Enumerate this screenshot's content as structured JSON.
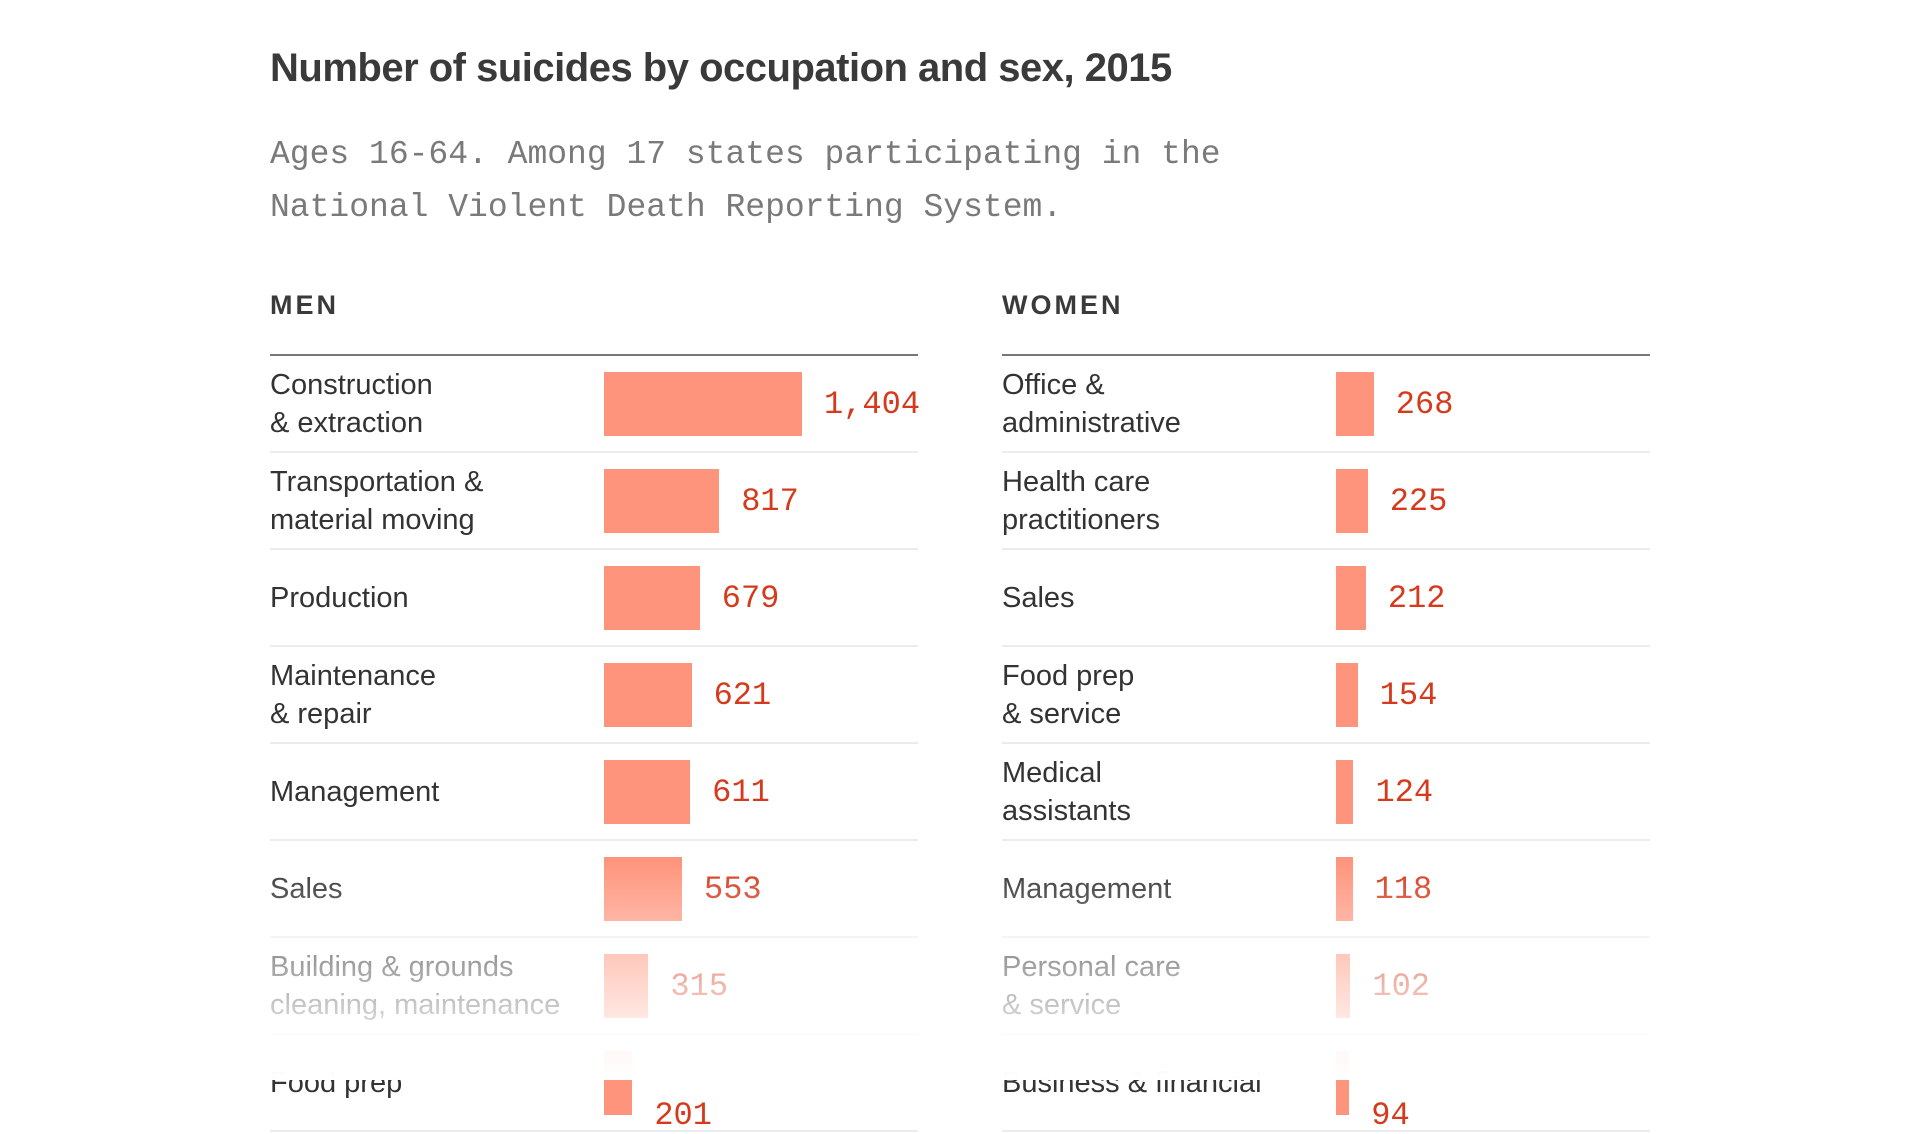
{
  "chart_data": [
    {
      "type": "bar",
      "orientation": "horizontal",
      "title": "Number of suicides by occupation and sex, 2015",
      "subtitle": "Ages 16-64. Among 17 states participating in the National Violent Death Reporting System.",
      "panel_label": "MEN",
      "categories": [
        "Construction\n& extraction",
        "Transportation &\nmaterial moving",
        "Production",
        "Maintenance\n& repair",
        "Management",
        "Sales",
        "Building & grounds\ncleaning, maintenance",
        "Food prep"
      ],
      "values": [
        1404,
        817,
        679,
        621,
        611,
        553,
        315,
        201
      ],
      "value_labels": [
        "1,404",
        "817",
        "679",
        "621",
        "611",
        "553",
        "315",
        "201"
      ],
      "xlim": [
        0,
        1404
      ]
    },
    {
      "type": "bar",
      "orientation": "horizontal",
      "panel_label": "WOMEN",
      "categories": [
        "Office &\nadministrative",
        "Health care\npractitioners",
        "Sales",
        "Food prep\n& service",
        "Medical\nassistants",
        "Management",
        "Personal care\n& service",
        "Business & financial"
      ],
      "values": [
        268,
        225,
        212,
        154,
        124,
        118,
        102,
        94
      ],
      "value_labels": [
        "268",
        "225",
        "212",
        "154",
        "124",
        "118",
        "102",
        "94"
      ],
      "xlim": [
        0,
        1404
      ]
    }
  ],
  "colors": {
    "bar": "#ff947c",
    "value_text": "#d63a1c",
    "title": "#3a3a3a",
    "subtitle": "#7a7a7a"
  }
}
